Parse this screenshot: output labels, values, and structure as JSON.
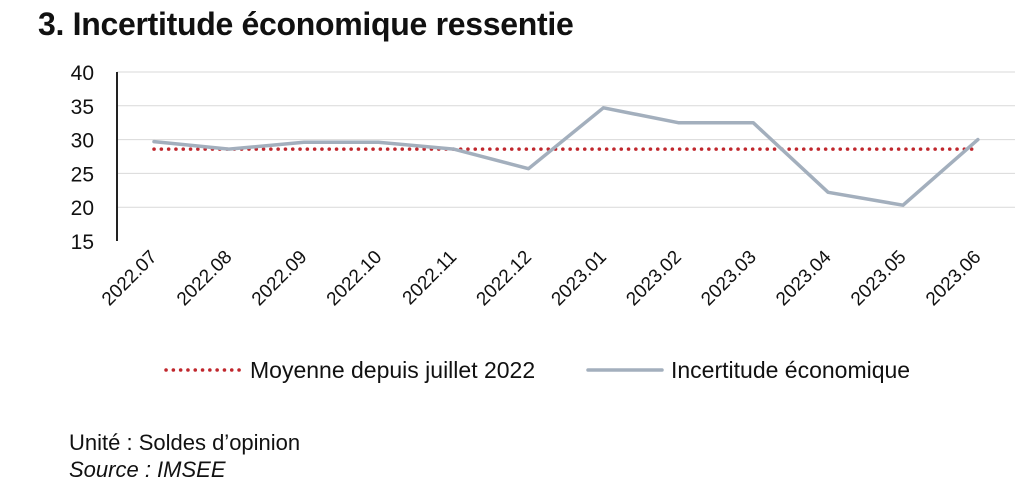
{
  "title": "3. Incertitude économique ressentie",
  "chart_data": {
    "type": "line",
    "categories": [
      "2022.07",
      "2022.08",
      "2022.09",
      "2022.10",
      "2022.11",
      "2022.12",
      "2023.01",
      "2023.02",
      "2023.03",
      "2023.04",
      "2023.05",
      "2023.06"
    ],
    "series": [
      {
        "name": "Moyenne depuis juillet 2022",
        "style": "dotted",
        "color": "#c0272d",
        "values": [
          28.6,
          28.6,
          28.6,
          28.6,
          28.6,
          28.6,
          28.6,
          28.6,
          28.6,
          28.6,
          28.6,
          28.6
        ]
      },
      {
        "name": "Incertitude économique",
        "style": "solid",
        "color": "#a3afbd",
        "values": [
          29.7,
          28.6,
          29.6,
          29.6,
          28.6,
          25.7,
          34.7,
          32.5,
          32.5,
          22.2,
          20.3,
          30.0
        ]
      }
    ],
    "ylim": [
      15,
      40
    ],
    "yticks": [
      15,
      20,
      25,
      30,
      35,
      40
    ],
    "grid": true,
    "legend_position": "bottom"
  },
  "notes": {
    "unit": "Unité : Soldes d’opinion",
    "source": "Source : IMSEE"
  }
}
